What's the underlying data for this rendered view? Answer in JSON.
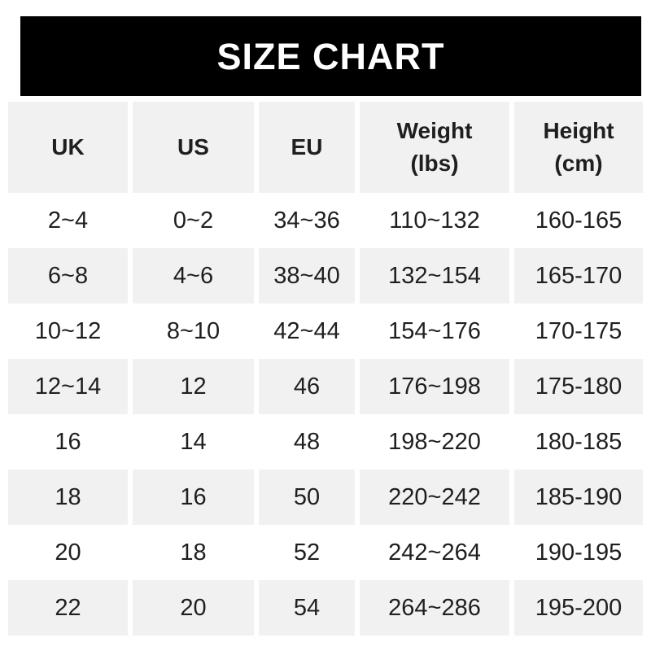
{
  "title_bar": {
    "label": "SIZE CHART"
  },
  "colors": {
    "title_bar_bg": "#000000",
    "title_text": "#ffffff",
    "stripe": "#f1f1f1",
    "row_bg": "#ffffff",
    "text": "#1f1f1f"
  },
  "chart_data": {
    "type": "table",
    "title": "SIZE CHART",
    "columns": [
      "UK",
      "US",
      "EU",
      "Weight\n(lbs)",
      "Height\n(cm)"
    ],
    "column_keys": [
      "uk",
      "us",
      "eu",
      "weight-lbs",
      "height-cm"
    ],
    "rows": [
      [
        "2~4",
        "0~2",
        "34~36",
        "110~132",
        "160-165"
      ],
      [
        "6~8",
        "4~6",
        "38~40",
        "132~154",
        "165-170"
      ],
      [
        "10~12",
        "8~10",
        "42~44",
        "154~176",
        "170-175"
      ],
      [
        "12~14",
        "12",
        "46",
        "176~198",
        "175-180"
      ],
      [
        "16",
        "14",
        "48",
        "198~220",
        "180-185"
      ],
      [
        "18",
        "16",
        "50",
        "220~242",
        "185-190"
      ],
      [
        "20",
        "18",
        "52",
        "242~264",
        "190-195"
      ],
      [
        "22",
        "20",
        "54",
        "264~286",
        "195-200"
      ]
    ],
    "layout": {
      "striped": true,
      "header_background": "#f1f1f1",
      "stripe_pattern": "header gray, then rows alternate white/gray starting white",
      "legend_position": "none",
      "grid": false
    }
  }
}
